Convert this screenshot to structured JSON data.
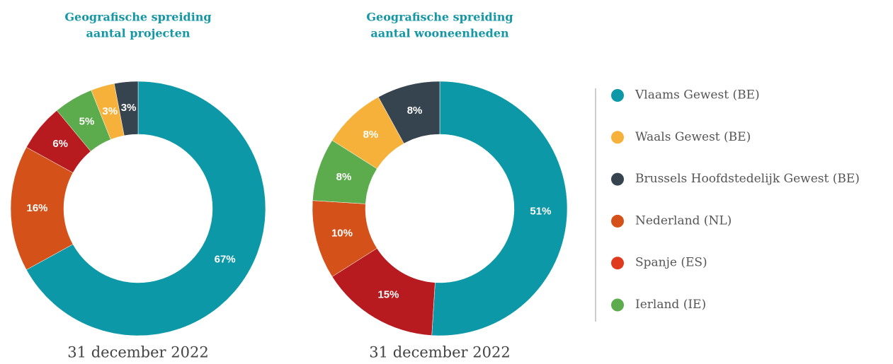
{
  "chart_data": [
    {
      "type": "donut",
      "title_lines": [
        "Geografische spreiding",
        "aantal projecten"
      ],
      "caption": "31 december 2022",
      "categories": [
        "Vlaams Gewest (BE)",
        "Nederland (NL)",
        "Spanje (ES)",
        "Ierland (IE)",
        "Waals Gewest (BE)",
        "Brussels Hoofdstedelijk Gewest (BE)"
      ],
      "values": [
        67,
        16,
        6,
        5,
        3,
        3
      ],
      "value_labels": [
        "67%",
        "16%",
        "6%",
        "5%",
        "3%",
        "3%"
      ],
      "colors": [
        "#0c98a7",
        "#d4521a",
        "#b71a1f",
        "#5cab4d",
        "#f6b13b",
        "#36444f"
      ]
    },
    {
      "type": "donut",
      "title_lines": [
        "Geografische spreiding",
        "aantal wooneenheden"
      ],
      "caption": "31 december 2022",
      "categories": [
        "Vlaams Gewest (BE)",
        "Spanje (ES)",
        "Nederland (NL)",
        "Ierland (IE)",
        "Waals Gewest (BE)",
        "Brussels Hoofdstedelijk Gewest (BE)"
      ],
      "values": [
        51,
        15,
        10,
        8,
        8,
        8
      ],
      "value_labels": [
        "51%",
        "15%",
        "10%",
        "8%",
        "8%",
        "8%"
      ],
      "colors": [
        "#0c98a7",
        "#b71a1f",
        "#d4521a",
        "#5cab4d",
        "#f6b13b",
        "#36444f"
      ]
    }
  ],
  "legend": {
    "items": [
      {
        "label": "Vlaams Gewest (BE)",
        "color": "#0c98a7"
      },
      {
        "label": "Waals Gewest (BE)",
        "color": "#f6b13b"
      },
      {
        "label": "Brussels Hoofdstedelijk Gewest (BE)",
        "color": "#36444f"
      },
      {
        "label": "Nederland (NL)",
        "color": "#d4521a"
      },
      {
        "label": "Spanje (ES)",
        "color": "#e03a1e"
      },
      {
        "label": "Ierland (IE)",
        "color": "#5cab4d"
      }
    ]
  }
}
